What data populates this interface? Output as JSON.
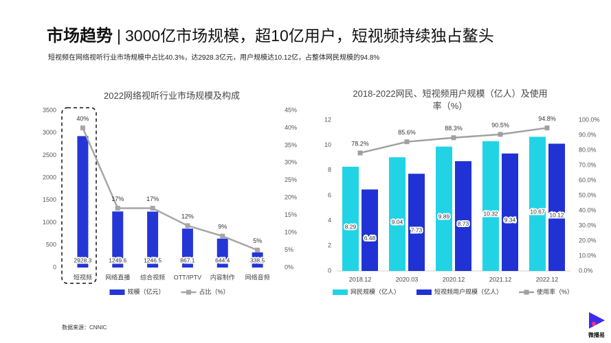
{
  "header": {
    "title_bold": "市场趋势",
    "separator": "|",
    "title_rest": "3000亿市场规模，超10亿用户，短视频持续独占鳌头",
    "subtitle": "短视频在网络视听行业市场规模中占比40.3%，达2928.3亿元，用户规模达10.12亿，占整体网民规模的94.8%"
  },
  "chart_data": [
    {
      "type": "bar",
      "title": "2022网络视听行业市场规模及构成",
      "categories": [
        "短视频",
        "网络直播",
        "综合视频",
        "OTT/IPTV",
        "内容制作",
        "网络音频"
      ],
      "series": [
        {
          "name": "规模（亿元）",
          "type": "bar",
          "color": "#2436d6",
          "values": [
            2928.3,
            1249.6,
            1246.5,
            867.1,
            644.4,
            338.5
          ]
        },
        {
          "name": "占比（%）",
          "type": "line",
          "axis": "y2",
          "color": "#a6a6a6",
          "values": [
            40,
            17,
            17,
            12,
            9,
            5
          ],
          "value_labels": [
            "40%",
            "17%",
            "17%",
            "12%",
            "9%",
            "5%"
          ]
        }
      ],
      "ylim": [
        0,
        3500
      ],
      "yticks": [
        0,
        500,
        1000,
        1500,
        2000,
        2500,
        3000,
        3500
      ],
      "y2lim": [
        0,
        45
      ],
      "y2ticks": [
        {
          "value": 0,
          "label": "0%"
        },
        {
          "value": 5,
          "label": "5%"
        },
        {
          "value": 10,
          "label": "10%"
        },
        {
          "value": 15,
          "label": "15%"
        },
        {
          "value": 20,
          "label": "20%"
        },
        {
          "value": 25,
          "label": "25%"
        },
        {
          "value": 30,
          "label": "30%"
        },
        {
          "value": 35,
          "label": "35%"
        },
        {
          "value": 40,
          "label": "40%"
        },
        {
          "value": 45,
          "label": "45%"
        }
      ],
      "legend": "bottom"
    },
    {
      "type": "bar",
      "title": "2018-2022网民、短视频用户规模（亿人）及使用率（%）",
      "categories": [
        "2018.12",
        "2020.03",
        "2020.12",
        "2021.12",
        "2022.12"
      ],
      "series": [
        {
          "name": "网民规模（亿人）",
          "type": "bar",
          "color": "#22d3e6",
          "values": [
            8.29,
            9.04,
            9.89,
            10.32,
            10.67
          ]
        },
        {
          "name": "短视频用户规模（亿人）",
          "type": "bar",
          "color": "#2032d4",
          "values": [
            6.48,
            7.73,
            8.73,
            9.34,
            10.12
          ]
        },
        {
          "name": "使用率（%）",
          "type": "line",
          "axis": "y2",
          "color": "#a0a0a0",
          "values": [
            78.2,
            85.6,
            88.3,
            90.5,
            94.8
          ],
          "value_labels": [
            "78.2%",
            "85.6%",
            "88.3%",
            "90.5%",
            "94.8%"
          ]
        }
      ],
      "ylim": [
        0,
        12
      ],
      "yticks": [
        0,
        2,
        4,
        6,
        8,
        10,
        12
      ],
      "y2lim": [
        0,
        100
      ],
      "y2ticks": [
        {
          "value": 0,
          "label": "0.0%"
        },
        {
          "value": 10,
          "label": "10.0%"
        },
        {
          "value": 20,
          "label": "20.0%"
        },
        {
          "value": 30,
          "label": "30.0%"
        },
        {
          "value": 40,
          "label": "40.0%"
        },
        {
          "value": 50,
          "label": "50.0%"
        },
        {
          "value": 60,
          "label": "60.0%"
        },
        {
          "value": 70,
          "label": "70.0%"
        },
        {
          "value": 80,
          "label": "80.0%"
        },
        {
          "value": 90,
          "label": "90.0%"
        },
        {
          "value": 100,
          "label": "100.0%"
        }
      ],
      "legend": "bottom"
    }
  ],
  "source": "数据来源：CNNIC",
  "logo": "微播易"
}
